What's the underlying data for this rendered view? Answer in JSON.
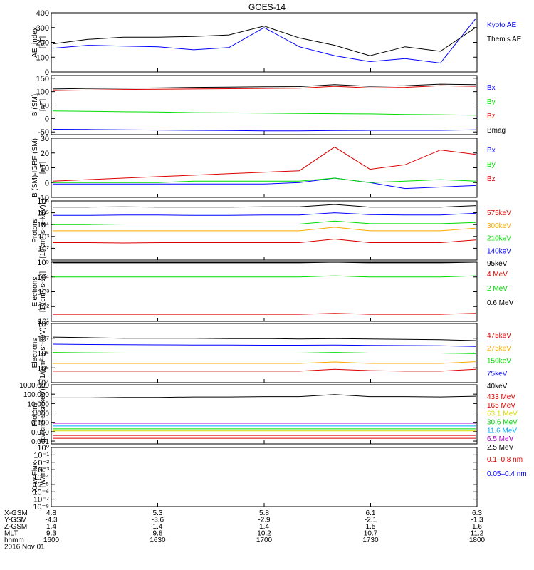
{
  "title": "GOES-14",
  "colors": {
    "black": "#000000",
    "blue": "#0000ff",
    "green": "#00dd00",
    "red": "#dd0000",
    "orange": "#ffaa00",
    "cyan": "#00aaff",
    "purple": "#aa00cc",
    "yellow": "#dddd00"
  },
  "panels": [
    {
      "id": "ae",
      "ylabel": [
        "AE_index",
        "[nT]"
      ],
      "scale": "linear",
      "ylim": [
        0,
        400
      ],
      "ticks": [
        {
          "v": 0,
          "t": "0"
        },
        {
          "v": 100,
          "t": "100"
        },
        {
          "v": 200,
          "t": "200"
        },
        {
          "v": 300,
          "t": "300"
        },
        {
          "v": 400,
          "t": "400"
        }
      ],
      "legend": [
        {
          "text": "Kyoto AE",
          "color": "#0000ff"
        },
        {
          "text": "Themis AE",
          "color": "#000000"
        }
      ]
    },
    {
      "id": "bsm",
      "ylabel": [
        "B (SM)",
        "[nT]"
      ],
      "scale": "linear",
      "ylim": [
        -60,
        160
      ],
      "ticks": [
        {
          "v": -50,
          "t": "-50"
        },
        {
          "v": 0,
          "t": "0"
        },
        {
          "v": 50,
          "t": "50"
        },
        {
          "v": 100,
          "t": "100"
        },
        {
          "v": 150,
          "t": "150"
        }
      ],
      "legend": [
        {
          "text": "Bx",
          "color": "#0000ff"
        },
        {
          "text": "By",
          "color": "#00dd00"
        },
        {
          "text": "Bz",
          "color": "#dd0000"
        },
        {
          "text": "Bmag",
          "color": "#000000"
        }
      ]
    },
    {
      "id": "bigrf",
      "ylabel": [
        "B (SM)-IGRF (SM)",
        "[nT]"
      ],
      "scale": "linear",
      "ylim": [
        -10,
        30
      ],
      "ticks": [
        {
          "v": -10,
          "t": "-10"
        },
        {
          "v": 0,
          "t": "0"
        },
        {
          "v": 10,
          "t": "10"
        },
        {
          "v": 20,
          "t": "20"
        },
        {
          "v": 30,
          "t": "30"
        }
      ],
      "legend": [
        {
          "text": "Bx",
          "color": "#0000ff"
        },
        {
          "text": "By",
          "color": "#00dd00"
        },
        {
          "text": "Bz",
          "color": "#dd0000"
        }
      ]
    },
    {
      "id": "protons1",
      "ylabel": [
        "Protons",
        "[1/(cm²-s-sr-keV)]"
      ],
      "scale": "log",
      "ylim": [
        1,
        6
      ],
      "ticks": [
        {
          "v": 2,
          "t": "10²"
        },
        {
          "v": 3,
          "t": "10³"
        },
        {
          "v": 4,
          "t": "10⁴"
        },
        {
          "v": 5,
          "t": "10⁵"
        },
        {
          "v": 6,
          "t": "10⁶"
        }
      ],
      "legend": [
        {
          "text": "575keV",
          "color": "#dd0000"
        },
        {
          "text": "300keV",
          "color": "#ffaa00"
        },
        {
          "text": "210keV",
          "color": "#00dd00"
        },
        {
          "text": "140keV",
          "color": "#0000ff"
        },
        {
          "text": "95keV",
          "color": "#000000"
        }
      ]
    },
    {
      "id": "electrons1",
      "ylabel": [
        "Electrons",
        "[1/(cm²-s-sr)]"
      ],
      "scale": "log",
      "ylim": [
        1,
        5
      ],
      "ticks": [
        {
          "v": 1,
          "t": "10¹"
        },
        {
          "v": 2,
          "t": "10²"
        },
        {
          "v": 3,
          "t": "10³"
        },
        {
          "v": 4,
          "t": "10⁴"
        },
        {
          "v": 5,
          "t": "10⁵"
        }
      ],
      "legend": [
        {
          "text": "4 MeV",
          "color": "#dd0000"
        },
        {
          "text": "2 MeV",
          "color": "#00dd00"
        },
        {
          "text": "0.6 MeV",
          "color": "#000000"
        }
      ]
    },
    {
      "id": "electrons2",
      "ylabel": [
        "Electrons",
        "[1/(cm²-s-sr-keV)]"
      ],
      "scale": "log",
      "ylim": [
        4,
        8
      ],
      "ticks": [
        {
          "v": 4,
          "t": "10⁴"
        },
        {
          "v": 5,
          "t": "10⁵"
        },
        {
          "v": 6,
          "t": "10⁶"
        },
        {
          "v": 7,
          "t": "10⁷"
        },
        {
          "v": 8,
          "t": "10⁸"
        }
      ],
      "legend": [
        {
          "text": "475keV",
          "color": "#dd0000"
        },
        {
          "text": "275keV",
          "color": "#ffaa00"
        },
        {
          "text": "150keV",
          "color": "#00dd00"
        },
        {
          "text": "75keV",
          "color": "#0000ff"
        },
        {
          "text": "40keV",
          "color": "#000000"
        }
      ]
    },
    {
      "id": "protons2",
      "ylabel": [
        "Protons",
        "[p/(cm²-s-sr-keV)]"
      ],
      "scale": "log",
      "ylim": [
        -3.3,
        3
      ],
      "ticks": [
        {
          "v": -3,
          "t": "0.001"
        },
        {
          "v": -2,
          "t": "0.010"
        },
        {
          "v": -1,
          "t": "0.100"
        },
        {
          "v": 0,
          "t": "1.000"
        },
        {
          "v": 1,
          "t": "10.000"
        },
        {
          "v": 2,
          "t": "100.000"
        },
        {
          "v": 3,
          "t": "1000.000"
        }
      ],
      "legend": [
        {
          "text": "433 MeV",
          "color": "#dd0000"
        },
        {
          "text": "165 MeV",
          "color": "#dd0000"
        },
        {
          "text": "63.1 MeV",
          "color": "#dddd00"
        },
        {
          "text": "30.6 MeV",
          "color": "#00dd00"
        },
        {
          "text": "11.6 MeV",
          "color": "#00aaff"
        },
        {
          "text": "6.5 MeV",
          "color": "#aa00cc"
        },
        {
          "text": "2.5 MeV",
          "color": "#000000"
        }
      ]
    },
    {
      "id": "xray",
      "ylabel": [
        "Xray Flux",
        "[W/m²]"
      ],
      "scale": "log",
      "ylim": [
        -8,
        0
      ],
      "ticks": [
        {
          "v": -8,
          "t": "10⁻⁸"
        },
        {
          "v": -7,
          "t": "10⁻⁷"
        },
        {
          "v": -6,
          "t": "10⁻⁶"
        },
        {
          "v": -5,
          "t": "10⁻⁵"
        },
        {
          "v": -4,
          "t": "10⁻⁴"
        },
        {
          "v": -3,
          "t": "10⁻³"
        },
        {
          "v": -2,
          "t": "10⁻²"
        },
        {
          "v": -1,
          "t": "10⁻¹"
        },
        {
          "v": 0,
          "t": "10⁰"
        }
      ],
      "legend": [
        {
          "text": "0.1–0.8 nm",
          "color": "#dd0000"
        },
        {
          "text": "0.05–0.4 nm",
          "color": "#0000ff"
        }
      ]
    }
  ],
  "x_axis": {
    "row_labels": [
      "X-GSM",
      "Y-GSM",
      "Z-GSM",
      "MLT",
      "hhmm",
      "2016 Nov 01"
    ],
    "ticks": [
      {
        "time": 1600,
        "vals": [
          "4.8",
          "-4.3",
          "1.4",
          "9.3",
          "1600"
        ]
      },
      {
        "time": 1630,
        "vals": [
          "5.3",
          "-3.6",
          "1.4",
          "9.8",
          "1630"
        ]
      },
      {
        "time": 1700,
        "vals": [
          "5.8",
          "-2.9",
          "1.4",
          "10.2",
          "1700"
        ]
      },
      {
        "time": 1730,
        "vals": [
          "6.1",
          "-2.1",
          "1.5",
          "10.7",
          "1730"
        ]
      },
      {
        "time": 1800,
        "vals": [
          "6.3",
          "-1.3",
          "1.6",
          "11.2",
          "1800"
        ]
      }
    ]
  },
  "chart_data": {
    "type": "line",
    "title": "GOES-14",
    "x": [
      "16:00",
      "16:10",
      "16:20",
      "16:30",
      "16:40",
      "16:50",
      "17:00",
      "17:10",
      "17:20",
      "17:30",
      "17:40",
      "17:50",
      "18:00"
    ],
    "panels": [
      {
        "name": "AE_index [nT]",
        "series": [
          {
            "name": "Kyoto AE",
            "values": [
              160,
              180,
              175,
              170,
              150,
              165,
              300,
              170,
              110,
              70,
              90,
              60,
              360
            ]
          },
          {
            "name": "Themis AE",
            "values": [
              190,
              220,
              235,
              235,
              240,
              250,
              310,
              230,
              180,
              110,
              170,
              140,
              300
            ]
          }
        ]
      },
      {
        "name": "B (SM) [nT]",
        "series": [
          {
            "name": "Bx",
            "values": [
              -40,
              -41,
              -42,
              -43,
              -44,
              -45,
              -46,
              -46,
              -45,
              -44,
              -44,
              -44,
              -42
            ]
          },
          {
            "name": "By",
            "values": [
              28,
              27,
              25,
              24,
              22,
              21,
              20,
              19,
              18,
              17,
              15,
              14,
              12
            ]
          },
          {
            "name": "Bz",
            "values": [
              104,
              106,
              108,
              109,
              110,
              111,
              112,
              113,
              120,
              114,
              116,
              122,
              120
            ]
          },
          {
            "name": "Bmag",
            "values": [
              110,
              112,
              113,
              114,
              116,
              117,
              118,
              119,
              126,
              120,
              122,
              128,
              126
            ]
          }
        ]
      },
      {
        "name": "B (SM)-IGRF (SM) [nT]",
        "series": [
          {
            "name": "Bx",
            "values": [
              -1,
              -1,
              -1,
              -1,
              -1,
              -1,
              -1,
              0,
              3,
              0,
              -4,
              -3,
              -2
            ]
          },
          {
            "name": "By",
            "values": [
              0,
              0,
              0,
              0,
              1,
              1,
              1,
              1,
              3,
              0,
              1,
              2,
              1
            ]
          },
          {
            "name": "Bz",
            "values": [
              1,
              2,
              3,
              4,
              5,
              6,
              7,
              8,
              24,
              9,
              12,
              22,
              19
            ]
          }
        ]
      },
      {
        "name": "Protons [1/(cm2-s-sr-keV)]",
        "series": [
          {
            "name": "575keV",
            "values": [
              300,
              300,
              280,
              300,
              300,
              300,
              300,
              300,
              600,
              300,
              300,
              300,
              500
            ]
          },
          {
            "name": "300keV",
            "values": [
              3000,
              3000,
              3000,
              3000,
              3000,
              3000,
              3000,
              3000,
              6000,
              3000,
              3000,
              3000,
              5000
            ]
          },
          {
            "name": "210keV",
            "values": [
              10000,
              10000,
              11000,
              11000,
              11000,
              11000,
              11000,
              11000,
              20000,
              12000,
              12000,
              12000,
              15000
            ]
          },
          {
            "name": "140keV",
            "values": [
              60000,
              60000,
              65000,
              65000,
              60000,
              60000,
              65000,
              65000,
              100000,
              70000,
              65000,
              65000,
              90000
            ]
          },
          {
            "name": "95keV",
            "values": [
              300000,
              300000,
              320000,
              300000,
              300000,
              300000,
              320000,
              320000,
              500000,
              300000,
              300000,
              300000,
              400000
            ]
          }
        ]
      },
      {
        "name": "Electrons [1/(cm2-s-sr)]",
        "series": [
          {
            "name": "4 MeV",
            "values": [
              30,
              30,
              30,
              30,
              30,
              30,
              30,
              30,
              35,
              30,
              30,
              30,
              35
            ]
          },
          {
            "name": "2 MeV",
            "values": [
              10000,
              10000,
              10000,
              10000,
              10000,
              10000,
              10000,
              10000,
              12000,
              10000,
              10000,
              10000,
              12000
            ]
          },
          {
            "name": "0.6 MeV",
            "values": [
              90000,
              90000,
              90000,
              90000,
              90000,
              90000,
              90000,
              90000,
              100000,
              90000,
              90000,
              90000,
              100000
            ]
          }
        ]
      },
      {
        "name": "Electrons [1/(cm2-s-sr-keV)]",
        "series": [
          {
            "name": "475keV",
            "values": [
              60000,
              60000,
              60000,
              60000,
              60000,
              60000,
              60000,
              60000,
              80000,
              65000,
              60000,
              60000,
              80000
            ]
          },
          {
            "name": "275keV",
            "values": [
              200000,
              200000,
              200000,
              200000,
              200000,
              200000,
              200000,
              200000,
              250000,
              200000,
              200000,
              200000,
              260000
            ]
          },
          {
            "name": "150keV",
            "values": [
              1100000,
              1050000,
              1000000,
              1000000,
              1000000,
              1000000,
              1000000,
              1000000,
              1100000,
              1000000,
              1000000,
              1000000,
              900000
            ]
          },
          {
            "name": "75keV",
            "values": [
              4000000,
              3800000,
              3700000,
              3600000,
              3500000,
              3500000,
              3400000,
              3400000,
              3500000,
              3300000,
              3200000,
              3100000,
              2800000
            ]
          },
          {
            "name": "40keV",
            "values": [
              12000000,
              11000000,
              10000000,
              10000000,
              10000000,
              9500000,
              9500000,
              9000000,
              9500000,
              9000000,
              8500000,
              8000000,
              7000000
            ]
          }
        ]
      },
      {
        "name": "Protons [p/(cm2-s-sr-keV)]",
        "series": [
          {
            "name": "433 MeV",
            "values": [
              0.002,
              0.002,
              0.002,
              0.002,
              0.002,
              0.002,
              0.002,
              0.002,
              0.002,
              0.002,
              0.002,
              0.002,
              0.002
            ]
          },
          {
            "name": "165 MeV",
            "values": [
              0.004,
              0.004,
              0.004,
              0.004,
              0.004,
              0.004,
              0.004,
              0.004,
              0.004,
              0.004,
              0.004,
              0.004,
              0.004
            ]
          },
          {
            "name": "63.1 MeV",
            "values": [
              0.012,
              0.012,
              0.012,
              0.012,
              0.012,
              0.012,
              0.012,
              0.012,
              0.012,
              0.012,
              0.012,
              0.012,
              0.012
            ]
          },
          {
            "name": "30.6 MeV",
            "values": [
              0.02,
              0.02,
              0.02,
              0.02,
              0.02,
              0.02,
              0.02,
              0.02,
              0.02,
              0.02,
              0.02,
              0.02,
              0.02
            ]
          },
          {
            "name": "11.6 MeV",
            "values": [
              0.04,
              0.04,
              0.04,
              0.04,
              0.04,
              0.04,
              0.04,
              0.04,
              0.04,
              0.04,
              0.04,
              0.04,
              0.04
            ]
          },
          {
            "name": "6.5 MeV",
            "values": [
              0.08,
              0.08,
              0.08,
              0.08,
              0.08,
              0.08,
              0.08,
              0.08,
              0.08,
              0.08,
              0.08,
              0.08,
              0.08
            ]
          },
          {
            "name": "2.5 MeV",
            "values": [
              40,
              40,
              45,
              45,
              50,
              50,
              55,
              55,
              90,
              55,
              55,
              50,
              60
            ]
          }
        ]
      },
      {
        "name": "Xray Flux [W/m2]",
        "series": [
          {
            "name": "0.1–0.8 nm",
            "values": []
          },
          {
            "name": "0.05–0.4 nm",
            "values": []
          }
        ]
      }
    ]
  }
}
